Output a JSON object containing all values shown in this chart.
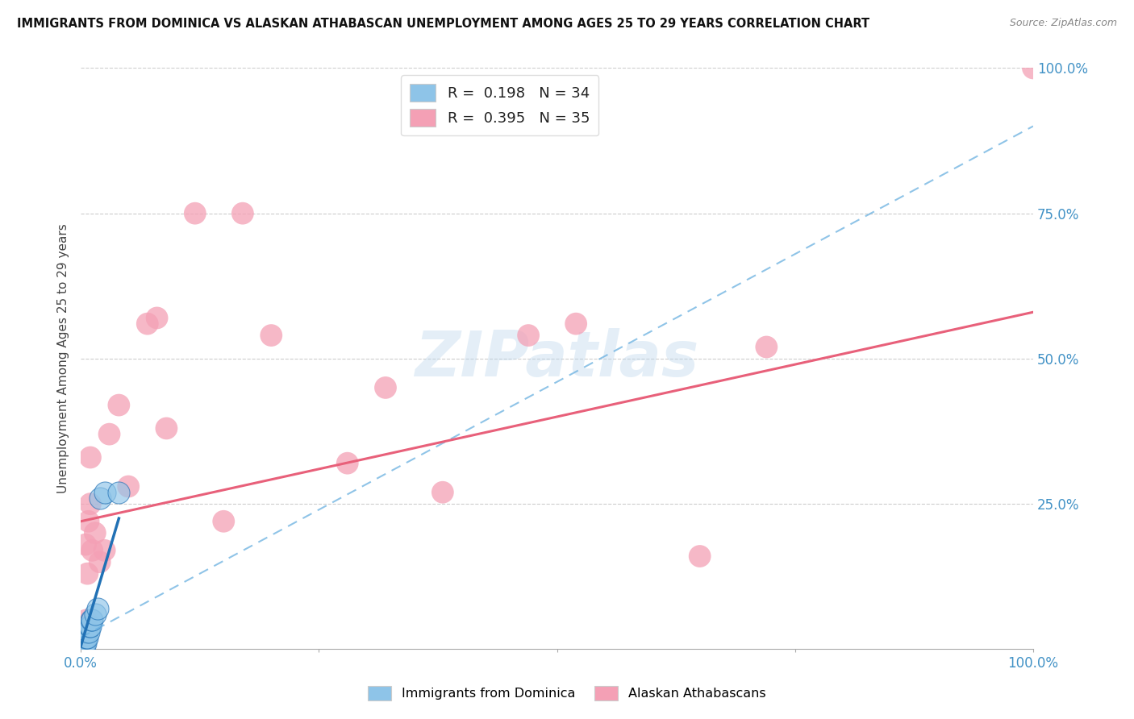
{
  "title": "IMMIGRANTS FROM DOMINICA VS ALASKAN ATHABASCAN UNEMPLOYMENT AMONG AGES 25 TO 29 YEARS CORRELATION CHART",
  "source": "Source: ZipAtlas.com",
  "ylabel": "Unemployment Among Ages 25 to 29 years",
  "watermark": "ZIPatlas",
  "legend_r1": "R =  0.198",
  "legend_n1": "N = 34",
  "legend_r2": "R =  0.395",
  "legend_n2": "N = 35",
  "color_blue": "#8ec4e8",
  "color_pink": "#f4a0b5",
  "color_blue_text": "#4292c6",
  "color_blue_line": "#6ab0e0",
  "color_pink_line": "#e8607a",
  "color_blue_solid": "#2171b5",
  "blue_scatter_x": [
    0.0,
    0.0,
    0.0,
    0.0,
    0.0,
    0.0,
    0.001,
    0.001,
    0.001,
    0.001,
    0.001,
    0.002,
    0.002,
    0.002,
    0.003,
    0.003,
    0.003,
    0.004,
    0.004,
    0.005,
    0.005,
    0.006,
    0.006,
    0.007,
    0.008,
    0.009,
    0.01,
    0.011,
    0.012,
    0.015,
    0.018,
    0.02,
    0.025,
    0.04
  ],
  "blue_scatter_y": [
    0.0,
    0.0,
    0.0,
    0.0,
    0.01,
    0.01,
    0.0,
    0.0,
    0.01,
    0.02,
    0.03,
    0.0,
    0.01,
    0.02,
    0.0,
    0.01,
    0.02,
    0.01,
    0.02,
    0.01,
    0.03,
    0.02,
    0.03,
    0.02,
    0.03,
    0.04,
    0.04,
    0.05,
    0.05,
    0.06,
    0.07,
    0.26,
    0.27,
    0.27
  ],
  "pink_scatter_x": [
    0.0,
    0.0,
    0.001,
    0.002,
    0.003,
    0.004,
    0.005,
    0.005,
    0.006,
    0.007,
    0.008,
    0.01,
    0.01,
    0.012,
    0.015,
    0.02,
    0.025,
    0.03,
    0.04,
    0.05,
    0.07,
    0.08,
    0.09,
    0.12,
    0.15,
    0.17,
    0.2,
    0.28,
    0.32,
    0.38,
    0.47,
    0.52,
    0.65,
    0.72,
    1.0
  ],
  "pink_scatter_y": [
    0.0,
    0.0,
    0.0,
    0.0,
    0.0,
    0.0,
    0.04,
    0.18,
    0.05,
    0.13,
    0.22,
    0.25,
    0.33,
    0.17,
    0.2,
    0.15,
    0.17,
    0.37,
    0.42,
    0.28,
    0.56,
    0.57,
    0.38,
    0.75,
    0.22,
    0.75,
    0.54,
    0.32,
    0.45,
    0.27,
    0.54,
    0.56,
    0.16,
    0.52,
    1.0
  ],
  "xlim": [
    0.0,
    1.0
  ],
  "ylim": [
    0.0,
    1.0
  ],
  "blue_line_x": [
    0.0,
    0.04
  ],
  "blue_line_y_intercept": 0.005,
  "blue_line_slope": 5.5,
  "pink_line_x_start": 0.0,
  "pink_line_x_end": 1.0,
  "pink_line_y_intercept": 0.22,
  "pink_line_y_end": 0.58,
  "dash_line_x_start": 0.0,
  "dash_line_x_end": 1.0,
  "dash_line_y_intercept": 0.02,
  "dash_line_y_end": 0.9
}
